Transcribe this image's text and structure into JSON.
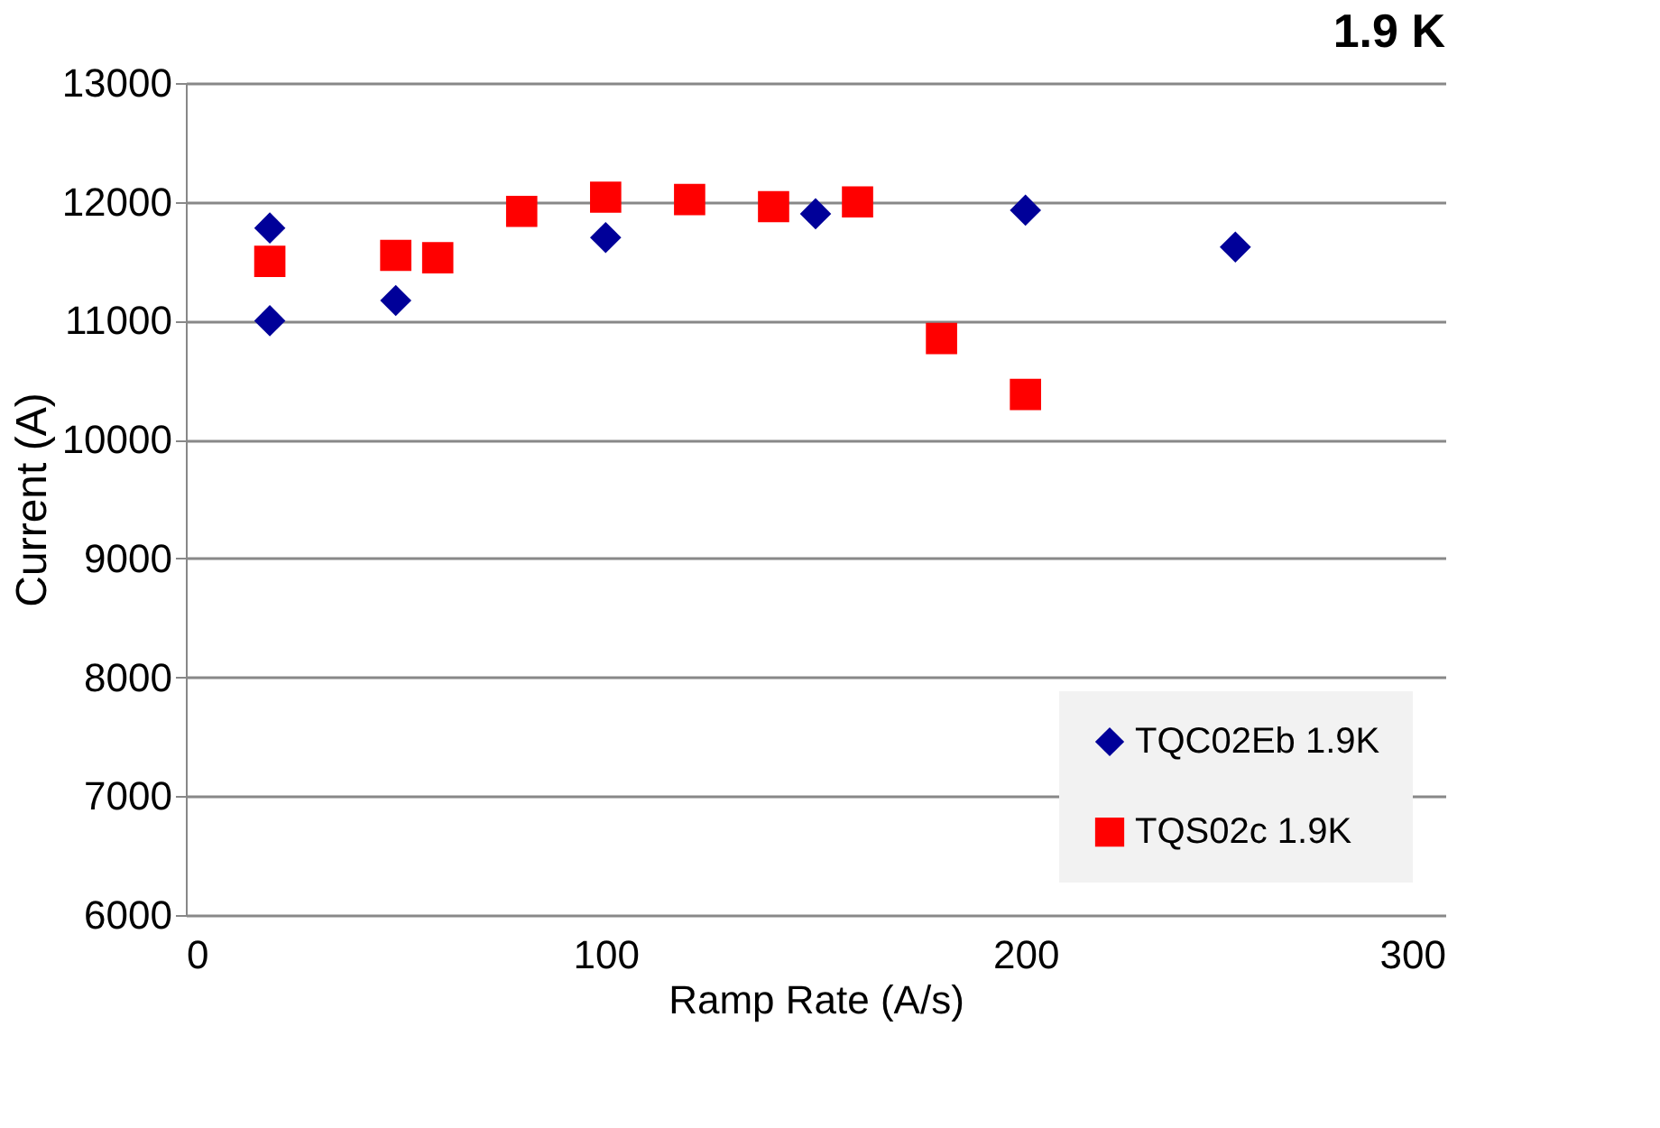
{
  "chart_data": {
    "type": "scatter",
    "title": "1.9 K",
    "xlabel": "Ramp Rate (A/s)",
    "ylabel": "Current (A)",
    "xlim": [
      0,
      300
    ],
    "xticks": [
      0,
      100,
      200,
      300
    ],
    "ylim": [
      6000,
      13000
    ],
    "yticks": [
      6000,
      7000,
      8000,
      9000,
      10000,
      11000,
      12000,
      13000
    ],
    "grid": "y",
    "legend": "bottom right",
    "series": [
      {
        "name": "TQC02Eb 1.9K",
        "color": "#000099",
        "marker": "diamond",
        "x": [
          20,
          20,
          50,
          100,
          150,
          200,
          250
        ],
        "values": [
          11780,
          11000,
          11170,
          11700,
          11900,
          11930,
          11620
        ]
      },
      {
        "name": "TQS02c 1.9K",
        "color": "#ff0000",
        "marker": "square",
        "x": [
          20,
          50,
          60,
          80,
          100,
          120,
          140,
          160,
          180,
          200
        ],
        "values": [
          11500,
          11550,
          11530,
          11920,
          12040,
          12020,
          11960,
          12000,
          10850,
          10380
        ]
      }
    ]
  }
}
